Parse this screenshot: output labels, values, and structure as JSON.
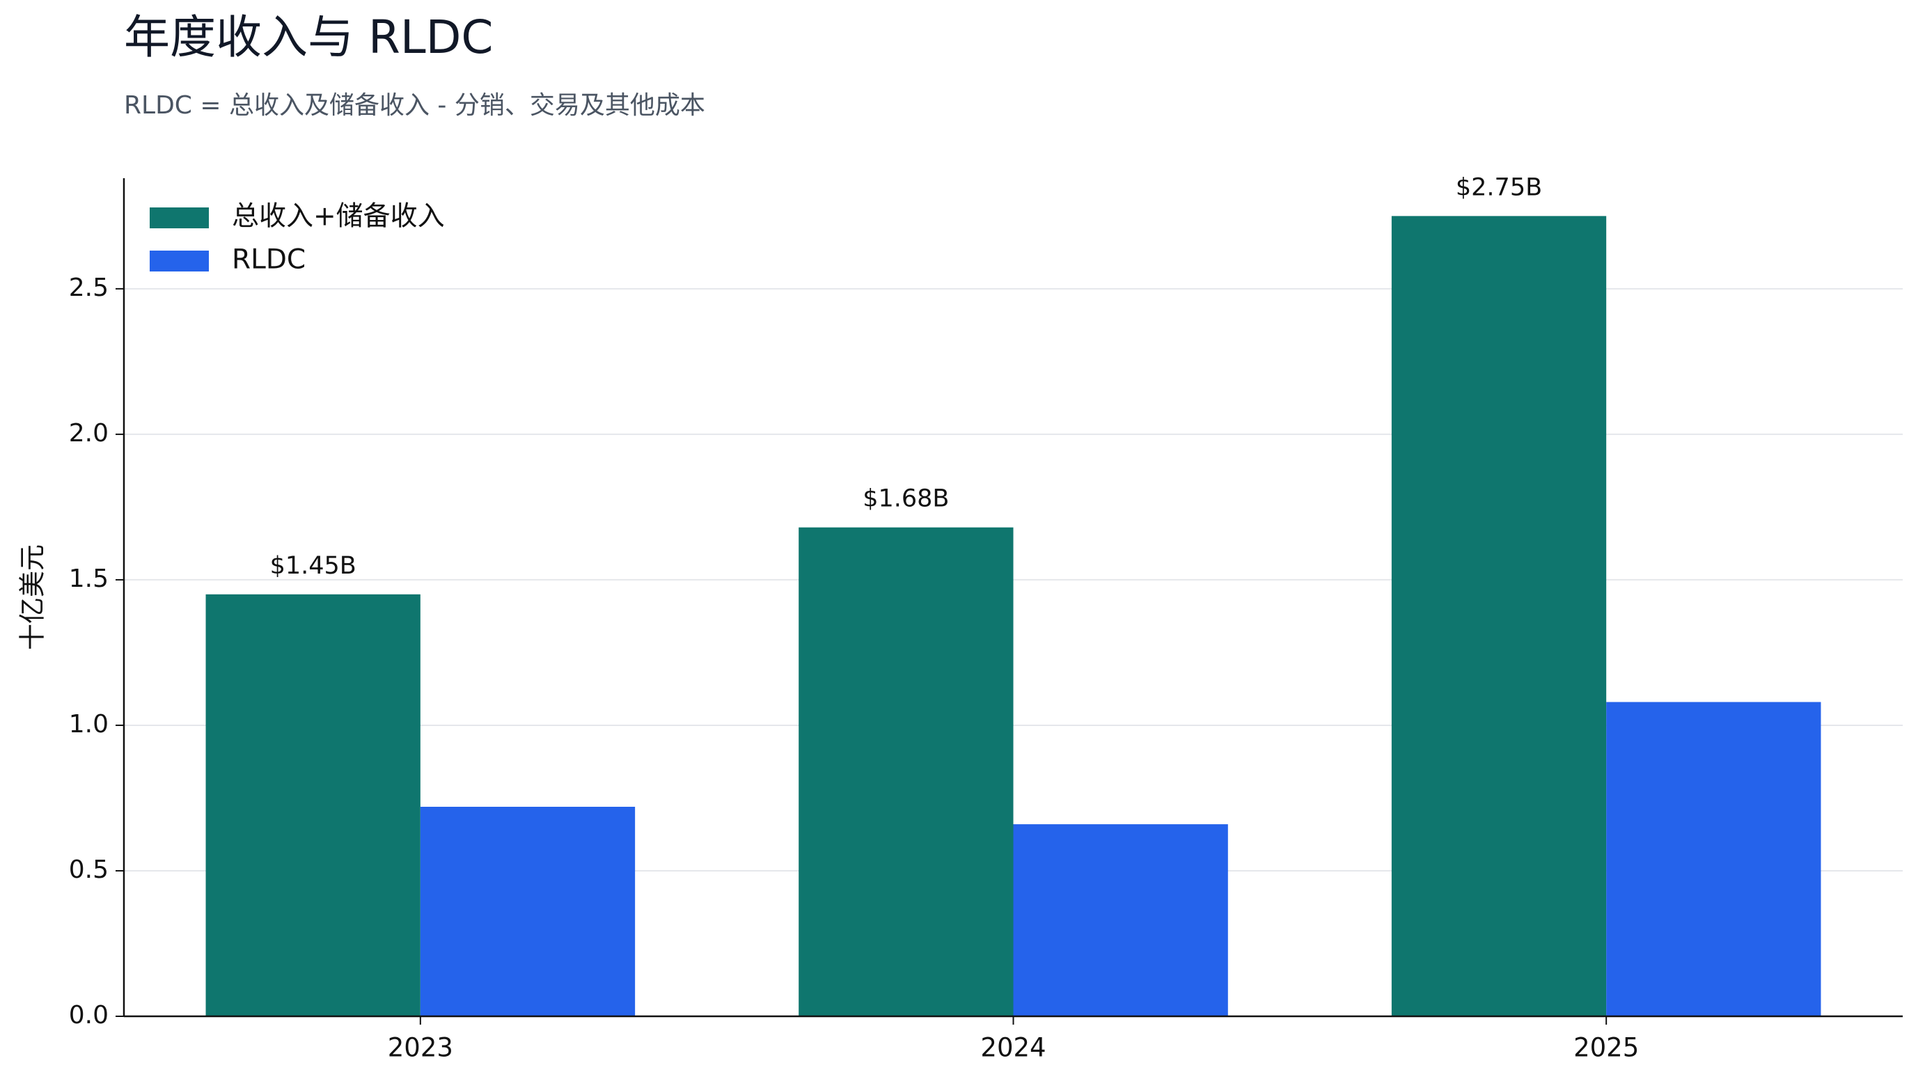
{
  "chart_data": {
    "type": "bar",
    "title": "年度收入与 RLDC",
    "subtitle": "RLDC = 总收入及储备收入 - 分销、交易及其他成本",
    "y_label": "十亿美元",
    "categories": [
      "2023",
      "2024",
      "2025"
    ],
    "series": [
      {
        "name": "总收入+储备收入",
        "color": "#0f766e",
        "values": [
          1.45,
          1.68,
          2.75
        ],
        "value_labels": [
          "$1.45B",
          "$1.68B",
          "$2.75B"
        ]
      },
      {
        "name": "RLDC",
        "color": "#2563eb",
        "values": [
          0.72,
          0.66,
          1.08
        ]
      }
    ],
    "ylim": [
      0,
      2.88
    ],
    "yticks": [
      {
        "value": 0,
        "label": "0.0"
      },
      0.5,
      {
        "value": 1,
        "label": "1.0"
      },
      1.5,
      {
        "value": 2,
        "label": "2.0"
      },
      2.5
    ],
    "grid": true,
    "legend": "upper left"
  }
}
